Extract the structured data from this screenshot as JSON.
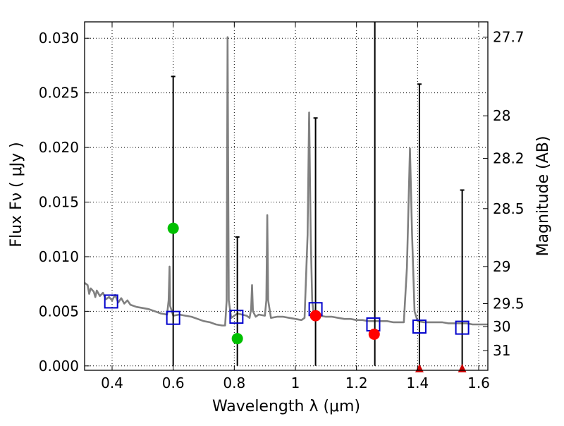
{
  "chart_data": {
    "type": "scatter",
    "xlabel": "Wavelength  λ (μm)",
    "ylabel": "Flux  Fν  ( μJy )",
    "y2label": "Magnitude (AB)",
    "xlim": [
      0.31,
      1.63
    ],
    "ylim": [
      -0.0004,
      0.0315
    ],
    "grid": true,
    "x_ticks": [
      0.4,
      0.6,
      0.8,
      1.0,
      1.2,
      1.4,
      1.6
    ],
    "x_tick_labels": [
      "0.4",
      "0.6",
      "0.8",
      "1",
      "1.2",
      "1.4",
      "1.6"
    ],
    "y_ticks": [
      0.0,
      0.005,
      0.01,
      0.015,
      0.02,
      0.025,
      0.03
    ],
    "y_tick_labels": [
      "0.000",
      "0.005",
      "0.010",
      "0.015",
      "0.020",
      "0.025",
      "0.030"
    ],
    "y2_ticks": [
      {
        "label": "27.7",
        "flux": 0.0301
      },
      {
        "label": "28",
        "flux": 0.0229
      },
      {
        "label": "28.2",
        "flux": 0.019
      },
      {
        "label": "28.5",
        "flux": 0.0144
      },
      {
        "label": "29",
        "flux": 0.0091
      },
      {
        "label": "29.5",
        "flux": 0.0057
      },
      {
        "label": "30",
        "flux": 0.0036
      },
      {
        "label": "31",
        "flux": 0.0014
      }
    ],
    "series": [
      {
        "name": "model_spectrum",
        "style": "line",
        "color": "#808080",
        "points": [
          [
            0.31,
            0.0076
          ],
          [
            0.32,
            0.0074
          ],
          [
            0.325,
            0.0066
          ],
          [
            0.33,
            0.0071
          ],
          [
            0.34,
            0.0068
          ],
          [
            0.345,
            0.0063
          ],
          [
            0.35,
            0.0069
          ],
          [
            0.36,
            0.0064
          ],
          [
            0.37,
            0.0067
          ],
          [
            0.38,
            0.0061
          ],
          [
            0.39,
            0.0063
          ],
          [
            0.4,
            0.006
          ],
          [
            0.41,
            0.0065
          ],
          [
            0.42,
            0.0058
          ],
          [
            0.43,
            0.0062
          ],
          [
            0.44,
            0.0057
          ],
          [
            0.45,
            0.006
          ],
          [
            0.46,
            0.0056
          ],
          [
            0.48,
            0.0054
          ],
          [
            0.5,
            0.0053
          ],
          [
            0.52,
            0.0052
          ],
          [
            0.54,
            0.005
          ],
          [
            0.56,
            0.0048
          ],
          [
            0.58,
            0.0047
          ],
          [
            0.585,
            0.006
          ],
          [
            0.588,
            0.0091
          ],
          [
            0.59,
            0.0055
          ],
          [
            0.6,
            0.0046
          ],
          [
            0.62,
            0.0047
          ],
          [
            0.64,
            0.0046
          ],
          [
            0.66,
            0.0045
          ],
          [
            0.68,
            0.0043
          ],
          [
            0.7,
            0.0041
          ],
          [
            0.72,
            0.004
          ],
          [
            0.74,
            0.0038
          ],
          [
            0.76,
            0.0037
          ],
          [
            0.77,
            0.0037
          ],
          [
            0.775,
            0.006
          ],
          [
            0.778,
            0.0301
          ],
          [
            0.782,
            0.006
          ],
          [
            0.79,
            0.0044
          ],
          [
            0.81,
            0.0048
          ],
          [
            0.84,
            0.0046
          ],
          [
            0.85,
            0.0044
          ],
          [
            0.855,
            0.0052
          ],
          [
            0.858,
            0.0074
          ],
          [
            0.861,
            0.005
          ],
          [
            0.87,
            0.0045
          ],
          [
            0.88,
            0.0047
          ],
          [
            0.9,
            0.0046
          ],
          [
            0.905,
            0.006
          ],
          [
            0.908,
            0.0138
          ],
          [
            0.911,
            0.006
          ],
          [
            0.92,
            0.0044
          ],
          [
            0.94,
            0.0045
          ],
          [
            0.96,
            0.0045
          ],
          [
            0.98,
            0.0044
          ],
          [
            1.0,
            0.0043
          ],
          [
            1.02,
            0.0042
          ],
          [
            1.03,
            0.0044
          ],
          [
            1.04,
            0.012
          ],
          [
            1.045,
            0.0232
          ],
          [
            1.05,
            0.012
          ],
          [
            1.055,
            0.006
          ],
          [
            1.06,
            0.0047
          ],
          [
            1.08,
            0.0046
          ],
          [
            1.1,
            0.0045
          ],
          [
            1.12,
            0.0045
          ],
          [
            1.14,
            0.0044
          ],
          [
            1.16,
            0.0043
          ],
          [
            1.18,
            0.0043
          ],
          [
            1.2,
            0.0042
          ],
          [
            1.22,
            0.0042
          ],
          [
            1.24,
            0.0041
          ],
          [
            1.26,
            0.0041
          ],
          [
            1.28,
            0.0041
          ],
          [
            1.3,
            0.0041
          ],
          [
            1.32,
            0.004
          ],
          [
            1.34,
            0.004
          ],
          [
            1.355,
            0.004
          ],
          [
            1.365,
            0.009
          ],
          [
            1.375,
            0.0199
          ],
          [
            1.382,
            0.012
          ],
          [
            1.39,
            0.005
          ],
          [
            1.4,
            0.0041
          ],
          [
            1.42,
            0.004
          ],
          [
            1.44,
            0.004
          ],
          [
            1.46,
            0.004
          ],
          [
            1.48,
            0.004
          ],
          [
            1.5,
            0.0039
          ],
          [
            1.52,
            0.0039
          ],
          [
            1.54,
            0.0039
          ],
          [
            1.56,
            0.0039
          ],
          [
            1.58,
            0.0038
          ],
          [
            1.6,
            0.0038
          ],
          [
            1.63,
            0.0038
          ]
        ]
      },
      {
        "name": "model_band_flux",
        "style": "open_square",
        "color": "#0000cc",
        "points": [
          [
            0.397,
            0.0059
          ],
          [
            0.6,
            0.0044
          ],
          [
            0.807,
            0.0045
          ],
          [
            1.066,
            0.0052
          ],
          [
            1.255,
            0.0038
          ],
          [
            1.406,
            0.0036
          ],
          [
            1.546,
            0.0035
          ]
        ]
      },
      {
        "name": "upper_limit_errorbars",
        "style": "errorbar",
        "color": "#000000",
        "bars": [
          [
            0.6,
            0.0,
            0.0265
          ],
          [
            0.81,
            0.0,
            0.0118
          ],
          [
            1.066,
            0.0,
            0.0227
          ],
          [
            1.26,
            0.0,
            0.0315
          ],
          [
            1.406,
            0.0,
            0.0258
          ],
          [
            1.546,
            0.0,
            0.0161
          ]
        ]
      },
      {
        "name": "detections_green",
        "style": "filled_circle",
        "color": "#00c000",
        "points": [
          [
            0.6,
            0.0126
          ],
          [
            0.81,
            0.0025
          ]
        ]
      },
      {
        "name": "detections_red",
        "style": "filled_circle",
        "color": "#ff0000",
        "points": [
          [
            1.066,
            0.0046
          ],
          [
            1.258,
            0.0029
          ]
        ]
      },
      {
        "name": "nondetections_red",
        "style": "triangle",
        "color": "#cc0000",
        "points": [
          [
            1.406,
            -0.0002
          ],
          [
            1.546,
            -0.0002
          ]
        ]
      }
    ]
  }
}
